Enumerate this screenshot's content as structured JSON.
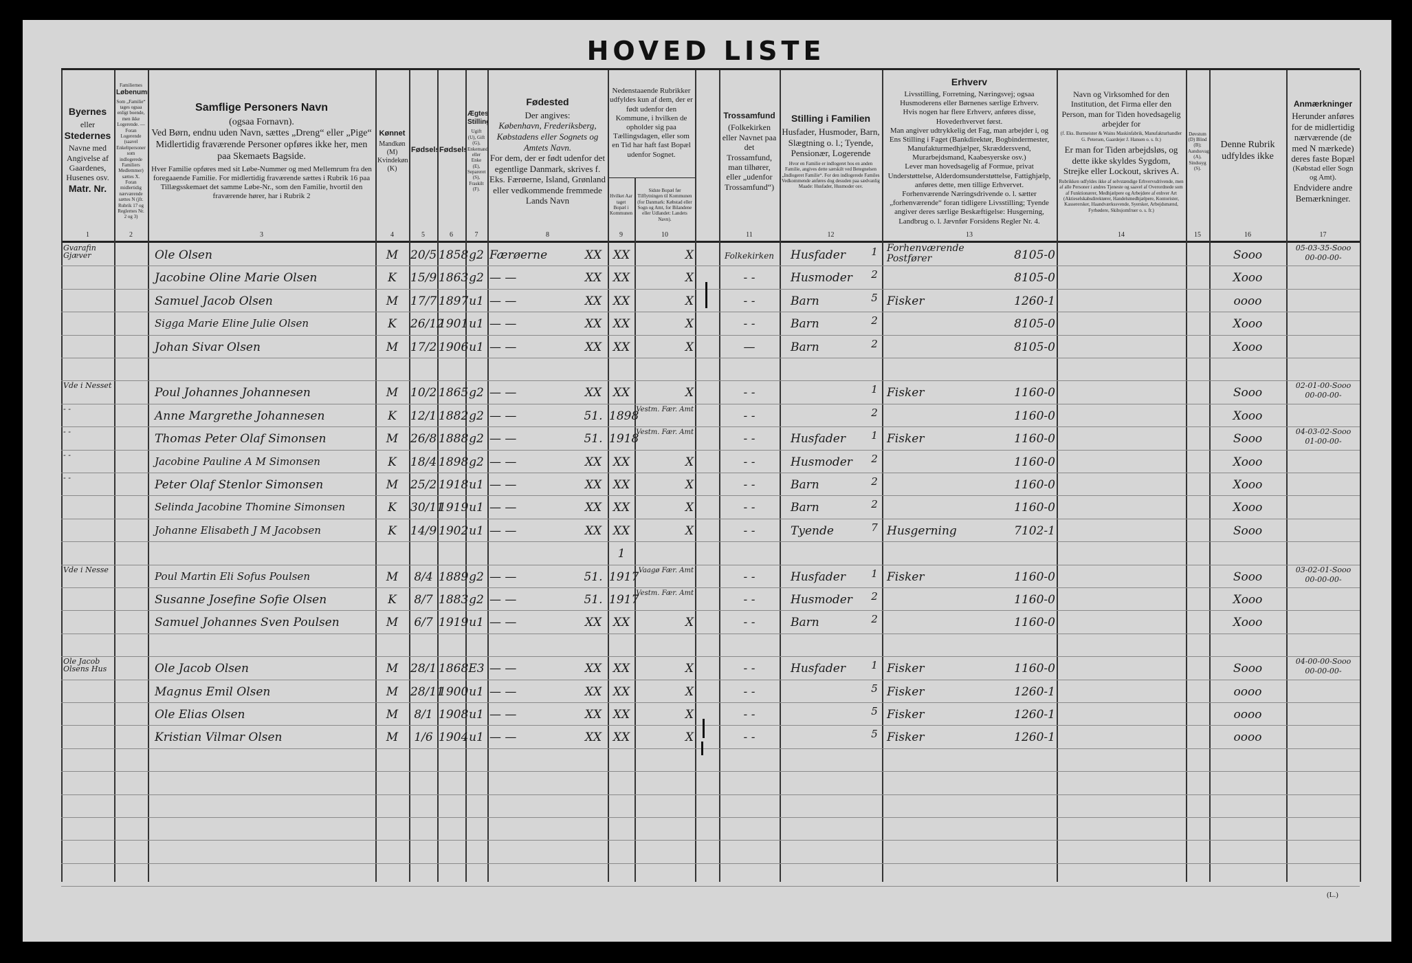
{
  "title": "HOVED LISTE",
  "footer_mark": "(L.)",
  "headers": {
    "c1": {
      "l1": "Byernes",
      "l2": "eller",
      "l3": "Stedernes",
      "l4": "Navne med Angivelse af Gaardenes, Husenes osv.",
      "l5": "Matr. Nr."
    },
    "c2": {
      "l1": "Familiernes",
      "l2": "Løbenumre.",
      "l3": "Som „Familie“ tages ogsaa enligt boende, men ikke Logerende. — Foran Logerende (saavel Enkeltpersoner som indlogerede Familiers Medlemmer) sættes X. Foran midlertidig nærværende sættes N (jfr. Rubrik 17 og Reglernes Nr. 2 og 3)"
    },
    "c3": {
      "l1": "Samflige Personers Navn",
      "l2": "(ogsaa Fornavn).",
      "l3": "Ved Børn, endnu uden Navn, sættes „Dreng“ eller „Pige“",
      "l4": "Midlertidig fraværende Personer opføres ikke her, men paa Skemaets Bagside.",
      "l5": "Hver Familie opføres med sit Løbe-Nummer og med Mellemrum fra den foregaaende Familie. For midlertidig fraværende sættes i Rubrik 16 paa Tillægsskemaet det samme Løbe-Nr., som den Familie, hvortil den fraværende hører, har i Rubrik 2"
    },
    "c4": {
      "l1": "Kønnet",
      "l2": "Mandkøn (M) Kvindekøn (K)"
    },
    "c5": {
      "l1": "Fødselsdag"
    },
    "c6": {
      "l1": "Fødselsaar"
    },
    "c7": {
      "l1": "Ægteskabelig Stilling",
      "l2": "Ugift (U), Gift (G), Enkemand eller Enke (E), Separeret (S), Fraskilt (F)."
    },
    "c8": {
      "l1": "Fødested",
      "l2": "Der angives:",
      "l3": "København, Frederiksberg, Købstadens eller Sognets og Amtets Navn.",
      "l4": "For dem, der er født udenfor det egentlige Danmark, skrives f. Eks. Færøerne, Island, Grønland eller vedkommende fremmede Lands Navn"
    },
    "c9_10": {
      "l1": "Nedenstaaende Rubrikker udfyldes kun af dem, der er født udenfor den Kommune, i hvilken de opholder sig paa Tællingsdagen, eller som en Tid har haft fast Bopæl udenfor Sognet."
    },
    "c9": {
      "l1": "Hvilket Aar taget Bopæl i Kommunen"
    },
    "c10": {
      "l1": "Sidste Bopæl før Tilflytningen til Kommunen (for Danmark: Købstad eller Sogn og Amt, for Bilandene eller Udlandet: Landets Navn)."
    },
    "c11": {
      "l1": "Trossamfund",
      "l2": "(Folkekirken eller Navnet paa det Trossamfund, man tilhører, eller „udenfor Trossamfund“)"
    },
    "c12": {
      "l1": "Stilling i Familien",
      "l2": "Husfader, Husmoder, Barn, Slægtning o. l.; Tyende, Pensionær, Logerende",
      "l3": "Hvor en Familie er indlogeret hos en anden Familie, angives dette særskilt ved Betegnelsen „Indlogeret Familie“. For den indlogerede Familes Vedkommende anføres dog desuden paa sædvanlig Maade: Husfader, Husmoder osv."
    },
    "c13": {
      "l1": "Erhverv",
      "l2": "Livsstilling, Forretning, Næringsvej; ogsaa Husmoderens eller Børnenes særlige Erhverv.",
      "l3": "Hvis nogen har flere Erhverv, anføres disse, Hovederhvervet først.",
      "l4": "Man angiver udtrykkelig det Fag, man arbejder i, og Ens Stilling i Faget (Bankdirektør, Bogbindermester, Manufakturmedhjælper, Skræddersvend, Murarbejdsmand, Kaabesyerske osv.)",
      "l5": "Lever man hovedsagelig af Formue, privat Understøttelse, Alderdomsunderstøttelse, Fattighjælp, anføres dette, men tillige Erhvervet.",
      "l6": "Forhenværende Næringsdrivende o. l. sætter „forhenværende“ foran tidligere Livsstilling; Tyende angiver deres særlige Beskæftigelse: Husgerning, Landbrug o. l. Jævnfør Forsidens Regler Nr. 4."
    },
    "c14": {
      "l1": "Navn og Virksomhed for den Institution, det Firma eller den Person, man for Tiden hovedsagelig arbejder for",
      "l2": "(f. Eks. Burmeister & Wains Maskinfabrik, Manufakturhandler G. Petersen, Gaardejer J. Hansen o. s. fr.)",
      "l3": "Er man for Tiden arbejdsløs, og dette ikke skyldes Sygdom, Strejke eller Lockout, skrives A.",
      "l4": "Rubrikken udfyldes ikke af selvstændige Erhvervsdrivende, men af alle Personer i andres Tjeneste og saavel af Overordnede som af Funktionærer, Medhjælpere og Arbejdere af enhver Art (Aktieselskabsdirektører, Handelsmedhjælpere, Kontorister, Kasserersker, Haandværkssvende, Syersker, Arbejdsmænd, Fyrbødere, Skibsjomfruer o. s. fr.)"
    },
    "c15": {
      "l1": "Døvstum (D) Blind (B); Aandssvag (A), Sindssyg (S)."
    },
    "c16": {
      "l1": "Denne Rubrik udfyldes ikke"
    },
    "c17": {
      "l1": "Anmærkninger",
      "l2": "Herunder anføres for de midlertidig nærværende (de med N mærkede) deres faste Bopæl",
      "l3": "(Købstad eller Sogn og Amt).",
      "l4": "Endvidere andre Bemærkninger."
    }
  },
  "column_numbers": [
    "1",
    "2",
    "3",
    "4",
    "5",
    "6",
    "7",
    "8",
    "9",
    "10",
    "11",
    "12",
    "13",
    "14",
    "15",
    "16",
    "17"
  ],
  "rows": [
    {
      "slot": 0,
      "place": "Gvarafin Gjæver",
      "name": "Ole Olsen",
      "sex": "M",
      "day": "20/5",
      "year": "1858",
      "status": "g2",
      "birthplace": "Færøerne",
      "bp2": "XX",
      "c9": "XX",
      "c10": "X",
      "faith": "Folkekirken",
      "role": "Husfader",
      "role_no": "1",
      "occupation": "Forhenværende Postfører",
      "code": "8105-0",
      "c16": "Sooo",
      "c17a": "05-03-35-Sooo",
      "c17b": "00-00-00-"
    },
    {
      "slot": 1,
      "name": "Jacobine Oline Marie Olsen",
      "sex": "K",
      "day": "15/9",
      "year": "1863",
      "status": "g2",
      "birthplace": "— —",
      "bp2": "XX",
      "c9": "XX",
      "c10": "X",
      "faith": "- -",
      "role": "Husmoder",
      "role_no": "2",
      "code": "8105-0",
      "c16": "Xooo"
    },
    {
      "slot": 2,
      "name": "Samuel Jacob Olsen",
      "sex": "M",
      "day": "17/7",
      "year": "1897",
      "status": "u1",
      "birthplace": "— —",
      "bp2": "XX",
      "c9": "XX",
      "c10": "X",
      "faith": "- -",
      "role": "Barn",
      "role_no": "5",
      "occupation": "Fisker",
      "code": "1260-1",
      "c16": "oooo"
    },
    {
      "slot": 3,
      "name": "Sigga Marie Eline Julie Olsen",
      "sex": "K",
      "day": "26/12",
      "year": "1901",
      "status": "u1",
      "birthplace": "— —",
      "bp2": "XX",
      "c9": "XX",
      "c10": "X",
      "faith": "- -",
      "role": "Barn",
      "role_no": "2",
      "code": "8105-0",
      "c16": "Xooo"
    },
    {
      "slot": 4,
      "name": "Johan Sivar Olsen",
      "sex": "M",
      "day": "17/2",
      "year": "1906",
      "status": "u1",
      "birthplace": "— —",
      "bp2": "XX",
      "c9": "XX",
      "c10": "X",
      "faith": "—",
      "role": "Barn",
      "role_no": "2",
      "code": "8105-0",
      "c16": "Xooo"
    },
    {
      "slot": 6,
      "place": "Vde i Nesset",
      "name": "Poul Johannes Johannesen",
      "sex": "M",
      "day": "10/2",
      "year": "1865",
      "status": "g2",
      "birthplace": "— —",
      "bp2": "XX",
      "c9": "XX",
      "c10": "X",
      "faith": "- -",
      "role_no": "1",
      "occupation": "Fisker",
      "code": "1160-0",
      "c16": "Sooo",
      "c17a": "02-01-00-Sooo",
      "c17b": "00-00-00-"
    },
    {
      "slot": 7,
      "place": "- -",
      "name": "Anne Margrethe Johannesen",
      "sex": "K",
      "day": "12/1",
      "year": "1882",
      "status": "g2",
      "birthplace": "— —",
      "bp2": "51.",
      "c9": "1898",
      "c10": "Vestm. Fær. Amt",
      "faith": "- -",
      "role_no": "2",
      "code": "1160-0",
      "c16": "Xooo"
    },
    {
      "slot": 8,
      "place": "- -",
      "name": "Thomas Peter Olaf Simonsen",
      "sex": "M",
      "day": "26/8",
      "year": "1888",
      "status": "g2",
      "birthplace": "— —",
      "bp2": "51.",
      "c9": "1918",
      "c10": "Vestm. Fær. Amt",
      "faith": "- -",
      "role": "Husfader",
      "role_no": "1",
      "occupation": "Fisker",
      "code": "1160-0",
      "c16": "Sooo",
      "c17a": "04-03-02-Sooo",
      "c17b": "01-00-00-"
    },
    {
      "slot": 9,
      "place": "- -",
      "name": "Jacobine Pauline A M Simonsen",
      "sex": "K",
      "day": "18/4",
      "year": "1898",
      "status": "g2",
      "birthplace": "— —",
      "bp2": "XX",
      "c9": "XX",
      "c10": "X",
      "faith": "- -",
      "role": "Husmoder",
      "role_no": "2",
      "code": "1160-0",
      "c16": "Xooo"
    },
    {
      "slot": 10,
      "place": "- -",
      "name": "Peter Olaf Stenlor Simonsen",
      "sex": "M",
      "day": "25/2",
      "year": "1918",
      "status": "u1",
      "birthplace": "— —",
      "bp2": "XX",
      "c9": "XX",
      "c10": "X",
      "faith": "- -",
      "role": "Barn",
      "role_no": "2",
      "code": "1160-0",
      "c16": "Xooo"
    },
    {
      "slot": 11,
      "name": "Selinda Jacobine Thomine Simonsen",
      "sex": "K",
      "day": "30/11",
      "year": "1919",
      "status": "u1",
      "birthplace": "— —",
      "bp2": "XX",
      "c9": "XX",
      "c10": "X",
      "faith": "- -",
      "role": "Barn",
      "role_no": "2",
      "code": "1160-0",
      "c16": "Xooo"
    },
    {
      "slot": 12,
      "name": "Johanne Elisabeth J M Jacobsen",
      "sex": "K",
      "day": "14/9",
      "year": "1902",
      "status": "u1",
      "birthplace": "— —",
      "bp2": "XX",
      "c9": "XX",
      "c10": "X",
      "faith": "- -",
      "role": "Tyende",
      "role_no": "7",
      "occupation": "Husgerning",
      "code": "7102-1",
      "c16": "Sooo"
    },
    {
      "slot": 13,
      "c9": "1"
    },
    {
      "slot": 14,
      "place": "Vde i Nesse",
      "name": "Poul Martin Eli Sofus Poulsen",
      "sex": "M",
      "day": "8/4",
      "year": "1889",
      "status": "g2",
      "birthplace": "— —",
      "bp2": "51.",
      "c9": "1917",
      "c10": "Vaagø Fær. Amt",
      "faith": "- -",
      "role": "Husfader",
      "role_no": "1",
      "occupation": "Fisker",
      "code": "1160-0",
      "c16": "Sooo",
      "c17a": "03-02-01-Sooo",
      "c17b": "00-00-00-"
    },
    {
      "slot": 15,
      "name": "Susanne Josefine Sofie Olsen",
      "sex": "K",
      "day": "8/7",
      "year": "1883",
      "status": "g2",
      "birthplace": "— —",
      "bp2": "51.",
      "c9": "1917",
      "c10": "Vestm. Fær. Amt",
      "faith": "- -",
      "role": "Husmoder",
      "role_no": "2",
      "code": "1160-0",
      "c16": "Xooo"
    },
    {
      "slot": 16,
      "name": "Samuel Johannes Sven Poulsen",
      "sex": "M",
      "day": "6/7",
      "year": "1919",
      "status": "u1",
      "birthplace": "— —",
      "bp2": "XX",
      "c9": "XX",
      "c10": "X",
      "faith": "- -",
      "role": "Barn",
      "role_no": "2",
      "code": "1160-0",
      "c16": "Xooo"
    },
    {
      "slot": 18,
      "place": "Ole Jacob Olsens Hus",
      "name": "Ole Jacob Olsen",
      "sex": "M",
      "day": "28/1",
      "year": "1868",
      "status": "E3",
      "birthplace": "— —",
      "bp2": "XX",
      "c9": "XX",
      "c10": "X",
      "faith": "- -",
      "role": "Husfader",
      "role_no": "1",
      "occupation": "Fisker",
      "code": "1160-0",
      "c16": "Sooo",
      "c17a": "04-00-00-Sooo",
      "c17b": "00-00-00-"
    },
    {
      "slot": 19,
      "name": "Magnus Emil Olsen",
      "sex": "M",
      "day": "28/11",
      "year": "1900",
      "status": "u1",
      "birthplace": "— —",
      "bp2": "XX",
      "c9": "XX",
      "c10": "X",
      "faith": "- -",
      "role_no": "5",
      "occupation": "Fisker",
      "code": "1260-1",
      "c16": "oooo"
    },
    {
      "slot": 20,
      "name": "Ole Elias Olsen",
      "sex": "M",
      "day": "8/1",
      "year": "1908",
      "status": "u1",
      "birthplace": "— —",
      "bp2": "XX",
      "c9": "XX",
      "c10": "X",
      "faith": "- -",
      "role_no": "5",
      "occupation": "Fisker",
      "code": "1260-1",
      "c16": "oooo"
    },
    {
      "slot": 21,
      "name": "Kristian Vilmar Olsen",
      "sex": "M",
      "day": "1/6",
      "year": "1904",
      "status": "u1",
      "birthplace": "— —",
      "bp2": "XX",
      "c9": "XX",
      "c10": "X",
      "faith": "- -",
      "role_no": "5",
      "occupation": "Fisker",
      "code": "1260-1",
      "c16": "oooo"
    }
  ]
}
